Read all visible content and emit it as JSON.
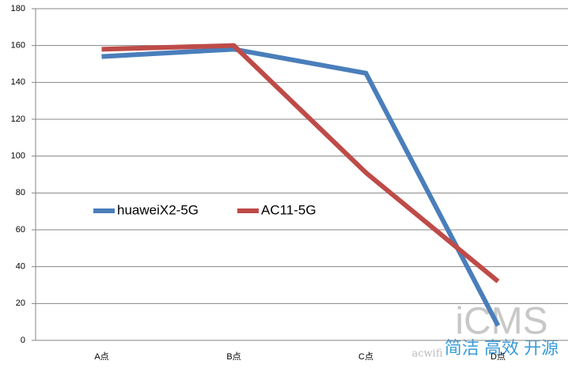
{
  "chart_data": {
    "type": "line",
    "categories": [
      "A点",
      "B点",
      "C点",
      "D点"
    ],
    "series": [
      {
        "name": "huaweiX2-5G",
        "color": "#4a7ebb",
        "values": [
          154,
          158,
          145,
          8
        ]
      },
      {
        "name": "AC11-5G",
        "color": "#be4b48",
        "values": [
          158,
          160,
          91,
          32
        ]
      }
    ],
    "ylim": [
      0,
      180
    ],
    "yticks": [
      0,
      20,
      40,
      60,
      80,
      100,
      120,
      140,
      160,
      180
    ],
    "grid": true,
    "legend": "left",
    "watermark": {
      "logo": "iCMS",
      "slogan": "简洁 高效 开源",
      "site": "acwifi"
    }
  }
}
